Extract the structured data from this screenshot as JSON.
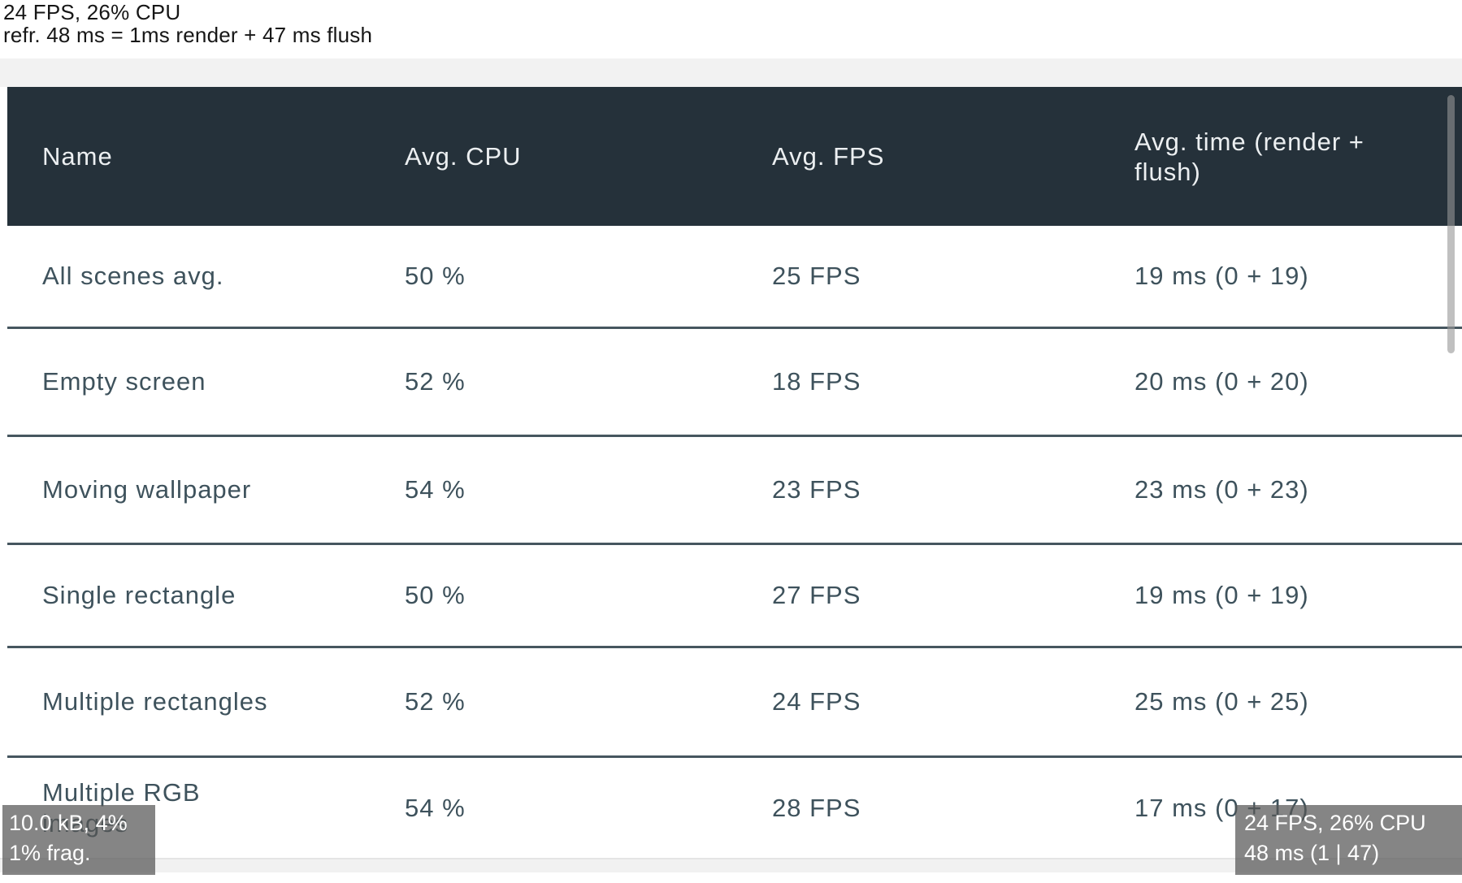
{
  "perf_top": {
    "line1": "24 FPS, 26% CPU",
    "line2": "refr. 48 ms = 1ms render + 47 ms flush"
  },
  "table": {
    "columns": [
      "Name",
      "Avg. CPU",
      "Avg. FPS",
      "Avg. time (render + flush)"
    ],
    "rows": [
      {
        "name": "All scenes avg.",
        "cpu": "50 %",
        "fps": "25 FPS",
        "time": "19 ms (0 + 19)"
      },
      {
        "name": "Empty screen",
        "cpu": "52 %",
        "fps": "18 FPS",
        "time": "20 ms (0 + 20)"
      },
      {
        "name": "Moving wallpaper",
        "cpu": "54 %",
        "fps": "23 FPS",
        "time": "23 ms (0 + 23)"
      },
      {
        "name": "Single rectangle",
        "cpu": "50 %",
        "fps": "27 FPS",
        "time": "19 ms (0 + 19)"
      },
      {
        "name": "Multiple rectangles",
        "cpu": "52 %",
        "fps": "24 FPS",
        "time": "25 ms (0 + 25)"
      },
      {
        "name": "Multiple RGB images",
        "cpu": "54 %",
        "fps": "28 FPS",
        "time": "17 ms (0 + 17)"
      }
    ]
  },
  "overlays": {
    "bottom_left": {
      "line1": "10.0 kB, 4%",
      "line2": "1% frag."
    },
    "bottom_right": {
      "line1": "24 FPS, 26% CPU",
      "line2": "48 ms (1 | 47)"
    }
  },
  "colors": {
    "header_bg": "#25313A",
    "header_text": "#ECEFF1",
    "row_text": "#3E525C",
    "divider": "#46565F",
    "page_strip": "#F2F2F2",
    "overlay_bg": "rgba(86,86,86,0.72)",
    "overlay_text": "#FFFFFF"
  }
}
